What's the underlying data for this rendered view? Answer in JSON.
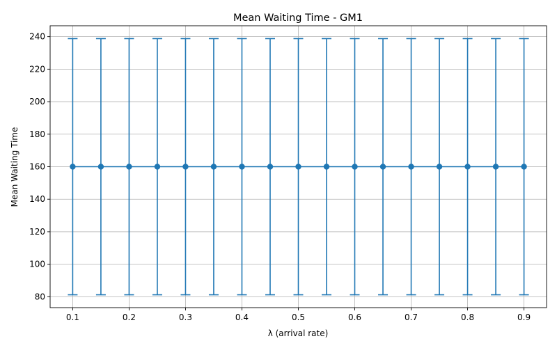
{
  "chart_data": {
    "type": "line",
    "title": "Mean Waiting Time - GM1",
    "xlabel": "λ (arrival rate)",
    "ylabel": "Mean Waiting Time",
    "x": [
      0.1,
      0.15,
      0.2,
      0.25,
      0.3,
      0.35,
      0.4,
      0.45,
      0.5,
      0.55,
      0.6,
      0.65,
      0.7,
      0.75,
      0.8,
      0.85,
      0.9
    ],
    "series": [
      {
        "values": [
          160,
          160,
          160,
          160,
          160,
          160,
          160,
          160,
          160,
          160,
          160,
          160,
          160,
          160,
          160,
          160,
          160
        ],
        "error_lower": [
          81.2,
          81.2,
          81.2,
          81.2,
          81.2,
          81.2,
          81.2,
          81.2,
          81.2,
          81.2,
          81.2,
          81.2,
          81.2,
          81.2,
          81.2,
          81.2,
          81.2
        ],
        "error_upper": [
          238.8,
          238.8,
          238.8,
          238.8,
          238.8,
          238.8,
          238.8,
          238.8,
          238.8,
          238.8,
          238.8,
          238.8,
          238.8,
          238.8,
          238.8,
          238.8,
          238.8
        ],
        "color": "#1f77b4",
        "marker": "circle"
      }
    ],
    "xlim": [
      0.06,
      0.94
    ],
    "ylim": [
      73.3,
      246.7
    ],
    "x_ticks": [
      0.1,
      0.2,
      0.3,
      0.4,
      0.5,
      0.6,
      0.7,
      0.8,
      0.9
    ],
    "x_tick_labels": [
      "0.1",
      "0.2",
      "0.3",
      "0.4",
      "0.5",
      "0.6",
      "0.7",
      "0.8",
      "0.9"
    ],
    "y_ticks": [
      80,
      100,
      120,
      140,
      160,
      180,
      200,
      220,
      240
    ],
    "y_tick_labels": [
      "80",
      "100",
      "120",
      "140",
      "160",
      "180",
      "200",
      "220",
      "240"
    ],
    "grid": true,
    "grid_color": "#b0b0b0",
    "legend": "none"
  }
}
